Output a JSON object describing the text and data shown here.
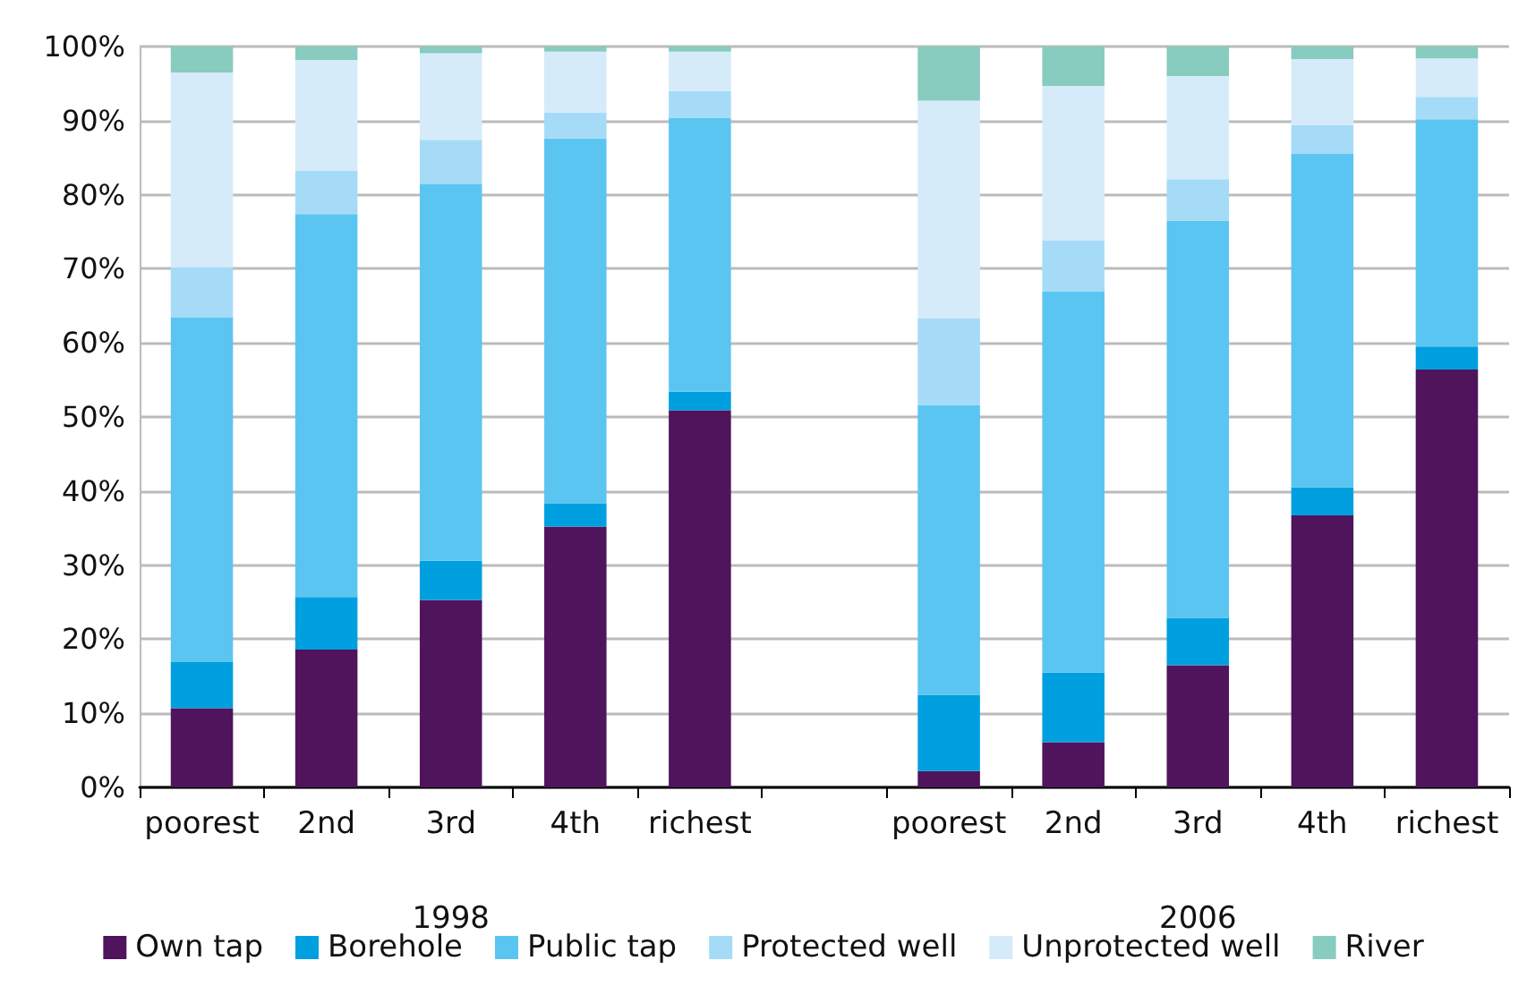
{
  "chart_data": {
    "type": "bar",
    "stacked": true,
    "categories": [
      "poorest",
      "2nd",
      "3rd",
      "4th",
      "richest",
      null,
      "poorest",
      "2nd",
      "3rd",
      "4th",
      "richest"
    ],
    "annotations": [
      "1998",
      "2006"
    ],
    "series": [
      {
        "name": "Own tap",
        "color": "#4f145c",
        "values": [
          10.7,
          18.6,
          25.3,
          35.2,
          50.9,
          null,
          2.2,
          6.1,
          16.5,
          36.7,
          56.4
        ]
      },
      {
        "name": "Borehole",
        "color": "#009fe0",
        "values": [
          6.2,
          7.1,
          5.3,
          3.1,
          2.5,
          null,
          10.3,
          9.4,
          6.4,
          3.8,
          3.1
        ]
      },
      {
        "name": "Public tap",
        "color": "#5bc5f1",
        "values": [
          46.5,
          51.7,
          50.8,
          49.3,
          37.0,
          null,
          39.1,
          51.4,
          53.6,
          45.0,
          30.7
        ]
      },
      {
        "name": "Protected well",
        "color": "#a5dbf7",
        "values": [
          6.8,
          5.8,
          6.0,
          3.5,
          3.6,
          null,
          11.7,
          6.9,
          5.6,
          3.9,
          3.0
        ]
      },
      {
        "name": "Unprotected well",
        "color": "#d5ebfa",
        "values": [
          26.3,
          15.0,
          11.7,
          8.2,
          5.3,
          null,
          29.4,
          20.9,
          13.9,
          8.9,
          5.2
        ]
      },
      {
        "name": "River",
        "color": "#88cbbf",
        "values": [
          3.5,
          1.8,
          0.9,
          0.7,
          0.7,
          null,
          7.3,
          5.3,
          4.0,
          1.7,
          1.6
        ]
      }
    ],
    "ylim": [
      0,
      100
    ],
    "yticks": [
      {
        "value": 0,
        "label": "0%"
      },
      {
        "value": 10,
        "label": "10%"
      },
      {
        "value": 20,
        "label": "20%"
      },
      {
        "value": 30,
        "label": "30%"
      },
      {
        "value": 40,
        "label": "40%"
      },
      {
        "value": 50,
        "label": "50%"
      },
      {
        "value": 60,
        "label": "60%"
      },
      {
        "value": 70,
        "label": "70%"
      },
      {
        "value": 80,
        "label": "80%"
      },
      {
        "value": 90,
        "label": "90%"
      },
      {
        "value": 100,
        "label": "100%"
      }
    ],
    "grid": "y",
    "legend": "bottom"
  }
}
